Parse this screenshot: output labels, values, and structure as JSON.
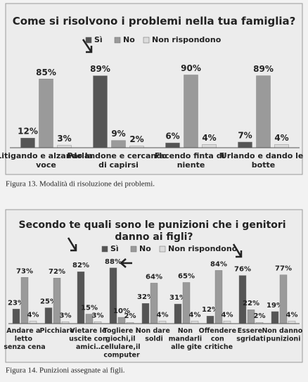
{
  "chart_data": [
    {
      "type": "bar",
      "title": "Come si risolvono i problemi nella tua famiglia?",
      "categories": [
        "Litigando e alzando la voce",
        "Parlandone e cercando di capirsi",
        "Facendo finta di niente",
        "Urlando e dando le botte"
      ],
      "series": [
        {
          "name": "Sì",
          "color": "#555555",
          "values": [
            12,
            89,
            6,
            7
          ],
          "value_labels": [
            "12%",
            "89%",
            "6%",
            "7%"
          ]
        },
        {
          "name": "No",
          "color": "#9a9a9a",
          "values": [
            85,
            9,
            90,
            89
          ],
          "value_labels": [
            "85%",
            "9%",
            "90%",
            "89%"
          ]
        },
        {
          "name": "Non rispondono",
          "color": "#dcdcdc",
          "values": [
            3,
            2,
            4,
            4
          ],
          "value_labels": [
            "3%",
            "2%",
            "4%",
            "4%"
          ]
        }
      ],
      "caption": "Figura 13. Modalità di risoluzione dei problemi."
    },
    {
      "type": "bar",
      "title": "Secondo te quali sono le punizioni che i genitori danno ai figli?",
      "categories": [
        "Andare a letto senza cena",
        "Picchiare",
        "Vietare le uscite con amici…",
        "Togliere i giochi,il cellulare,il computer",
        "Non dare soldi",
        "Non mandarli alle gite",
        "Offendere con critiche",
        "Essere sgridati",
        "Non danno punizioni"
      ],
      "series": [
        {
          "name": "Sì",
          "color": "#555555",
          "values": [
            23,
            25,
            82,
            88,
            32,
            31,
            12,
            76,
            19
          ],
          "value_labels": [
            "23%",
            "25%",
            "82%",
            "88%",
            "32%",
            "31%",
            "12%",
            "76%",
            "19%"
          ]
        },
        {
          "name": "No",
          "color": "#9a9a9a",
          "values": [
            73,
            72,
            15,
            10,
            64,
            65,
            84,
            22,
            77
          ],
          "value_labels": [
            "73%",
            "72%",
            "15%",
            "10%",
            "64%",
            "65%",
            "84%",
            "22%",
            "77%"
          ]
        },
        {
          "name": "Non rispondono",
          "color": "#dcdcdc",
          "values": [
            4,
            3,
            3,
            2,
            4,
            4,
            4,
            2,
            4
          ],
          "value_labels": [
            "4%",
            "3%",
            "3%",
            "2%",
            "4%",
            "4%",
            "4%",
            "2%",
            "4%"
          ]
        }
      ],
      "caption": "Figura 14. Punizioni assegnate ai figli."
    }
  ]
}
